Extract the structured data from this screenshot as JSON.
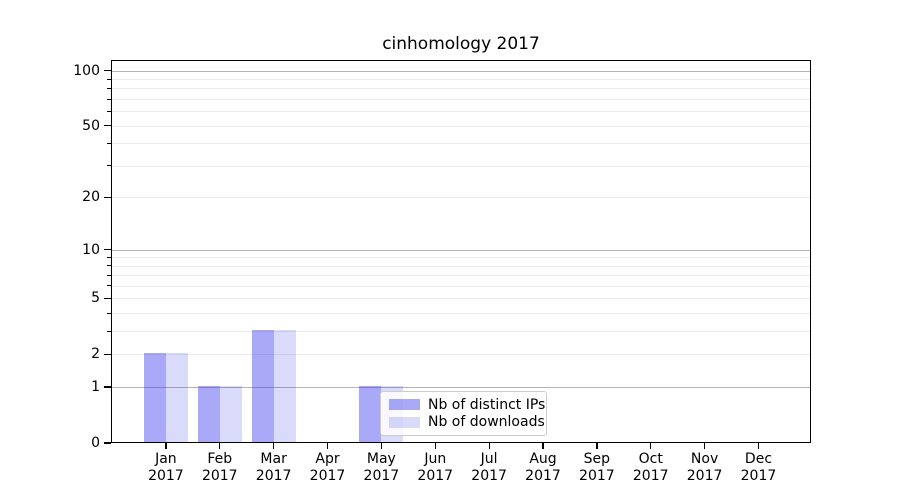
{
  "title": "cinhomology 2017",
  "legend": {
    "items": [
      {
        "label": "Nb of distinct IPs",
        "color": "rgba(50,50,235,0.42)"
      },
      {
        "label": "Nb of downloads",
        "color": "rgba(50,50,235,0.18)"
      }
    ]
  },
  "chart_data": {
    "type": "bar",
    "title": "cinhomology 2017",
    "categories": [
      "Jan",
      "Feb",
      "Mar",
      "Apr",
      "May",
      "Jun",
      "Jul",
      "Aug",
      "Sep",
      "Oct",
      "Nov",
      "Dec"
    ],
    "x_year_suffix": "2017",
    "series": [
      {
        "name": "Nb of distinct IPs",
        "color": "rgba(50,50,235,0.42)",
        "values": [
          2,
          1,
          3,
          0,
          1,
          0,
          0,
          0,
          0,
          0,
          0,
          0
        ]
      },
      {
        "name": "Nb of downloads",
        "color": "rgba(50,50,235,0.18)",
        "values": [
          2,
          1,
          3,
          0,
          1,
          0,
          0,
          0,
          0,
          0,
          0,
          0
        ]
      }
    ],
    "xlabel": "",
    "ylabel": "",
    "y_axis": {
      "scale": "log10(1+v)",
      "tick_values": [
        0,
        1,
        2,
        5,
        10,
        20,
        50,
        100
      ],
      "major_gridlines": [
        1,
        10,
        100
      ],
      "minor_gridlines": [
        2,
        3,
        4,
        5,
        6,
        7,
        8,
        9,
        20,
        30,
        40,
        50,
        60,
        70,
        80,
        90
      ],
      "ylim": [
        0,
        115
      ]
    },
    "grid": true,
    "legend_position": "lower center (over May bars)",
    "colors": {
      "grid_major": "#b3b3b3",
      "grid_minor": "#ebebeb",
      "spine": "#000000"
    }
  }
}
